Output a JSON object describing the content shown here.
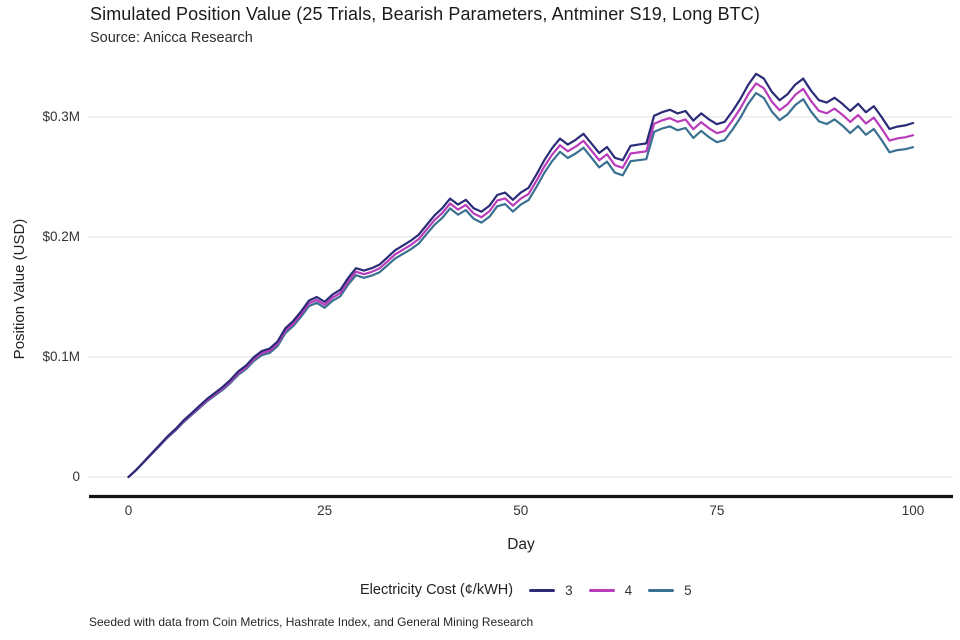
{
  "header": {
    "title": "Simulated Position Value (25 Trials, Bearish Parameters, Antminer S19, Long BTC)",
    "subtitle": "Source: Anicca Research"
  },
  "footer": {
    "note": "Seeded with data from Coin Metrics, Hashrate Index, and General Mining Research"
  },
  "colors": {
    "cost_3": "#2a2c78",
    "cost_4": "#b93cba",
    "cost_5": "#3a7090",
    "gridline": "#ebebeb",
    "axis": "#141414"
  },
  "chart_data": {
    "type": "line",
    "title": "Simulated Position Value (25 Trials, Bearish Parameters, Antminer S19, Long BTC)",
    "subtitle": "Source: Anicca Research",
    "xlabel": "Day",
    "ylabel": "Position Value (USD)",
    "legend_title": "Electricity Cost (¢/kWH)",
    "legend_position": "bottom",
    "grid": "horizontal",
    "units": "USD millions",
    "xlim": [
      0,
      100
    ],
    "ylim": [
      0,
      0.35
    ],
    "xticks": [
      0,
      25,
      50,
      75,
      100
    ],
    "yticks": [
      {
        "label": "0",
        "value": 0
      },
      {
        "label": "$0.1M",
        "value": 0.1
      },
      {
        "label": "$0.2M",
        "value": 0.2
      },
      {
        "label": "$0.3M",
        "value": 0.3
      }
    ],
    "x": [
      0,
      1,
      2,
      3,
      4,
      5,
      6,
      7,
      8,
      9,
      10,
      11,
      12,
      13,
      14,
      15,
      16,
      17,
      18,
      19,
      20,
      21,
      22,
      23,
      24,
      25,
      26,
      27,
      28,
      29,
      30,
      31,
      32,
      33,
      34,
      35,
      36,
      37,
      38,
      39,
      40,
      41,
      42,
      43,
      44,
      45,
      46,
      47,
      48,
      49,
      50,
      51,
      52,
      53,
      54,
      55,
      56,
      57,
      58,
      59,
      60,
      61,
      62,
      63,
      64,
      65,
      66,
      67,
      68,
      69,
      70,
      71,
      72,
      73,
      74,
      75,
      76,
      77,
      78,
      79,
      80,
      81,
      82,
      83,
      84,
      85,
      86,
      87,
      88,
      89,
      90,
      91,
      92,
      93,
      94,
      95,
      96,
      97,
      98,
      99,
      100
    ],
    "series": [
      {
        "name": "3",
        "color": "#2a2c78",
        "values": [
          0,
          0.006,
          0.013,
          0.02,
          0.027,
          0.034,
          0.04,
          0.047,
          0.053,
          0.059,
          0.065,
          0.07,
          0.075,
          0.081,
          0.088,
          0.093,
          0.1,
          0.105,
          0.107,
          0.113,
          0.124,
          0.13,
          0.138,
          0.147,
          0.15,
          0.146,
          0.152,
          0.156,
          0.166,
          0.174,
          0.172,
          0.174,
          0.177,
          0.183,
          0.189,
          0.193,
          0.197,
          0.202,
          0.21,
          0.218,
          0.224,
          0.232,
          0.227,
          0.231,
          0.224,
          0.221,
          0.226,
          0.235,
          0.237,
          0.231,
          0.237,
          0.241,
          0.252,
          0.264,
          0.274,
          0.282,
          0.277,
          0.281,
          0.286,
          0.278,
          0.27,
          0.275,
          0.266,
          0.264,
          0.276,
          0.277,
          0.278,
          0.301,
          0.304,
          0.306,
          0.303,
          0.305,
          0.297,
          0.303,
          0.298,
          0.294,
          0.296,
          0.305,
          0.315,
          0.327,
          0.336,
          0.332,
          0.321,
          0.314,
          0.319,
          0.327,
          0.332,
          0.322,
          0.314,
          0.312,
          0.316,
          0.311,
          0.305,
          0.311,
          0.304,
          0.309,
          0.3,
          0.29,
          0.292,
          0.293,
          0.295
        ]
      },
      {
        "name": "4",
        "color": "#b93cba",
        "values": [
          0,
          0.0059,
          0.0128,
          0.0197,
          0.0266,
          0.0335,
          0.0394,
          0.0463,
          0.0522,
          0.0581,
          0.064,
          0.0689,
          0.0738,
          0.0797,
          0.0866,
          0.0915,
          0.0984,
          0.1033,
          0.1052,
          0.1111,
          0.122,
          0.1279,
          0.1358,
          0.1447,
          0.1476,
          0.1435,
          0.1494,
          0.1533,
          0.1632,
          0.1711,
          0.169,
          0.1709,
          0.1738,
          0.1797,
          0.1856,
          0.1895,
          0.1934,
          0.1983,
          0.2062,
          0.2141,
          0.22,
          0.2279,
          0.2228,
          0.2267,
          0.2196,
          0.2165,
          0.2214,
          0.2303,
          0.2322,
          0.2261,
          0.232,
          0.2359,
          0.2468,
          0.2587,
          0.2686,
          0.2765,
          0.2714,
          0.2753,
          0.2802,
          0.2721,
          0.264,
          0.2689,
          0.2598,
          0.2577,
          0.2696,
          0.2705,
          0.2714,
          0.2943,
          0.2972,
          0.2991,
          0.296,
          0.2979,
          0.2898,
          0.2957,
          0.2906,
          0.2865,
          0.2884,
          0.2973,
          0.3072,
          0.3191,
          0.328,
          0.3239,
          0.3128,
          0.3057,
          0.3106,
          0.3185,
          0.3234,
          0.3133,
          0.3052,
          0.3031,
          0.307,
          0.3019,
          0.2958,
          0.3017,
          0.2946,
          0.2995,
          0.2904,
          0.2803,
          0.2822,
          0.2831,
          0.2848
        ]
      },
      {
        "name": "5",
        "color": "#3a7090",
        "values": [
          0,
          0.0058,
          0.0126,
          0.0194,
          0.0262,
          0.033,
          0.0388,
          0.0456,
          0.0514,
          0.0572,
          0.063,
          0.0678,
          0.0726,
          0.0784,
          0.0852,
          0.09,
          0.0968,
          0.1016,
          0.1034,
          0.1092,
          0.12,
          0.1258,
          0.1336,
          0.1424,
          0.1452,
          0.141,
          0.1468,
          0.1506,
          0.1604,
          0.1682,
          0.166,
          0.1678,
          0.1706,
          0.1764,
          0.1822,
          0.186,
          0.1898,
          0.1946,
          0.2024,
          0.2102,
          0.216,
          0.2238,
          0.2186,
          0.2224,
          0.2152,
          0.212,
          0.2168,
          0.2256,
          0.2274,
          0.2212,
          0.227,
          0.2308,
          0.2416,
          0.2534,
          0.2632,
          0.271,
          0.2658,
          0.2696,
          0.2744,
          0.2662,
          0.258,
          0.2628,
          0.2536,
          0.2514,
          0.2632,
          0.264,
          0.2648,
          0.2876,
          0.2904,
          0.2922,
          0.289,
          0.2908,
          0.2826,
          0.2884,
          0.2832,
          0.279,
          0.2808,
          0.2896,
          0.2994,
          0.3112,
          0.32,
          0.3158,
          0.3046,
          0.2974,
          0.3022,
          0.31,
          0.3148,
          0.3046,
          0.2964,
          0.2942,
          0.298,
          0.2928,
          0.2866,
          0.2924,
          0.2852,
          0.29,
          0.2808,
          0.2706,
          0.2724,
          0.2732,
          0.2748
        ]
      }
    ]
  }
}
